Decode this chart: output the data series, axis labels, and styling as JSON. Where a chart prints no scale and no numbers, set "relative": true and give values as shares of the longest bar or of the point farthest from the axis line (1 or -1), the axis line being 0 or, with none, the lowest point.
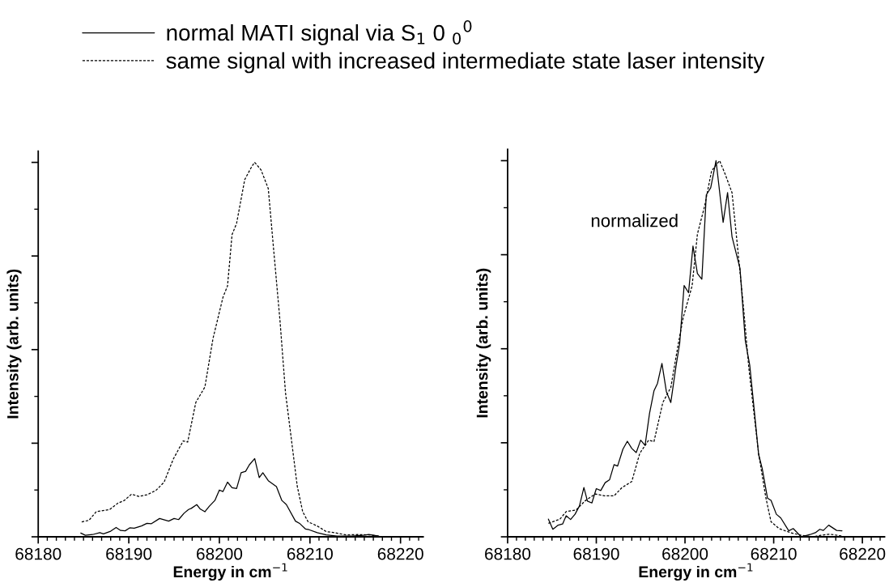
{
  "chart_data": [
    {
      "type": "line",
      "relative": true,
      "xlabel": "Energy in cm$^{−1}$",
      "ylabel": "Intensity (arb. units)",
      "xlim": [
        68180,
        68222.5
      ],
      "xticks": [
        68180,
        68190,
        68200,
        68210,
        68220
      ],
      "legend": "top",
      "tick_labels": "x",
      "series": [
        {
          "name": "normal MATI signal via S$_{1}$ 0 $_{0}$$^{0}$",
          "color": "#000000",
          "line_style": "solid",
          "x": [
            68184.7,
            68185.2,
            68186.0,
            68186.8,
            68187.2,
            68188.0,
            68188.6,
            68189.1,
            68189.6,
            68190.1,
            68190.6,
            68191.4,
            68192.0,
            68192.5,
            68193.4,
            68194.4,
            68195.0,
            68195.5,
            68196.1,
            68196.6,
            68196.9,
            68197.5,
            68197.9,
            68198.4,
            68198.9,
            68199.5,
            68200.0,
            68200.4,
            68200.9,
            68201.4,
            68201.9,
            68202.4,
            68202.9,
            68203.3,
            68203.9,
            68204.4,
            68204.8,
            68205.4,
            68206.3,
            68206.9,
            68207.4,
            68208.4,
            68208.9,
            68209.5,
            68209.9,
            68210.8,
            68211.8,
            68213.0,
            68214.6,
            68215.9,
            68216.5,
            68217.6
          ],
          "values": [
            0.01,
            0.004,
            0.006,
            0.011,
            0.008,
            0.015,
            0.025,
            0.017,
            0.016,
            0.024,
            0.023,
            0.029,
            0.036,
            0.035,
            0.049,
            0.042,
            0.049,
            0.046,
            0.063,
            0.073,
            0.076,
            0.086,
            0.074,
            0.067,
            0.082,
            0.097,
            0.125,
            0.121,
            0.146,
            0.131,
            0.129,
            0.171,
            0.175,
            0.192,
            0.209,
            0.158,
            0.171,
            0.15,
            0.134,
            0.097,
            0.086,
            0.042,
            0.035,
            0.021,
            0.019,
            0.011,
            0.005,
            0.002,
            0.002,
            0.004,
            0.006,
            0.002
          ]
        },
        {
          "name": "same signal with increased intermediate state laser intensity",
          "color": "#000000",
          "line_style": "dashed",
          "x": [
            68184.8,
            68185.6,
            68186.4,
            68187.9,
            68188.8,
            68189.5,
            68190.3,
            68191.1,
            68192.0,
            68193.0,
            68193.9,
            68194.9,
            68196.0,
            68196.5,
            68197.4,
            68198.4,
            68199.3,
            68200.4,
            68200.9,
            68201.4,
            68201.9,
            68202.8,
            68203.6,
            68203.9,
            68204.6,
            68205.4,
            68206.0,
            68206.7,
            68207.3,
            68207.9,
            68208.6,
            68209.2,
            68209.8,
            68210.8,
            68211.8,
            68212.7,
            68214.0,
            68215.3,
            68216.5,
            68217.6
          ],
          "values": [
            0.04,
            0.044,
            0.067,
            0.073,
            0.09,
            0.097,
            0.114,
            0.108,
            0.112,
            0.124,
            0.146,
            0.207,
            0.256,
            0.253,
            0.359,
            0.4,
            0.53,
            0.64,
            0.67,
            0.807,
            0.837,
            0.954,
            0.99,
            1.0,
            0.98,
            0.93,
            0.765,
            0.575,
            0.385,
            0.27,
            0.135,
            0.067,
            0.04,
            0.029,
            0.014,
            0.011,
            0.005,
            0.006,
            0.005,
            0.002
          ]
        }
      ]
    },
    {
      "type": "line",
      "relative": true,
      "xlabel": "Energy in cm$^{−1}$",
      "ylabel": "Intensity (arb. units)",
      "xlim": [
        68180,
        68222.5
      ],
      "xticks": [
        68180,
        68190,
        68200,
        68210,
        68220
      ],
      "tick_labels": "x",
      "annotations": [
        "normalized"
      ],
      "series": [
        {
          "color": "#000000",
          "line_style": "solid",
          "x": [
            68184.6,
            68185.1,
            68185.7,
            68186.2,
            68186.6,
            68187.1,
            68187.6,
            68188.1,
            68188.6,
            68189.0,
            68189.5,
            68190.0,
            68190.5,
            68191.0,
            68191.5,
            68192.0,
            68192.4,
            68193.0,
            68193.5,
            68194.0,
            68194.5,
            68195.0,
            68195.5,
            68196.0,
            68196.5,
            68196.9,
            68197.4,
            68197.9,
            68198.4,
            68199.0,
            68199.4,
            68199.9,
            68200.4,
            68200.9,
            68201.4,
            68201.9,
            68202.4,
            68202.9,
            68203.5,
            68204.3,
            68204.8,
            68205.3,
            68206.2,
            68206.8,
            68207.3,
            68207.8,
            68208.3,
            68208.7,
            68209.3,
            68209.7,
            68210.3,
            68210.8,
            68211.7,
            68212.2,
            68213.1,
            68214.1,
            68214.7,
            68215.2,
            68215.6,
            68216.2,
            68217.1,
            68217.7
          ],
          "values": [
            0.047,
            0.02,
            0.031,
            0.034,
            0.056,
            0.046,
            0.06,
            0.082,
            0.131,
            0.095,
            0.09,
            0.128,
            0.123,
            0.144,
            0.152,
            0.192,
            0.188,
            0.233,
            0.254,
            0.235,
            0.224,
            0.257,
            0.243,
            0.328,
            0.388,
            0.408,
            0.461,
            0.386,
            0.357,
            0.456,
            0.514,
            0.668,
            0.649,
            0.773,
            0.7,
            0.685,
            0.909,
            0.928,
            1.0,
            0.836,
            0.915,
            0.798,
            0.714,
            0.521,
            0.456,
            0.339,
            0.219,
            0.182,
            0.103,
            0.097,
            0.06,
            0.05,
            0.016,
            0.022,
            0.0,
            0.006,
            0.011,
            0.02,
            0.017,
            0.031,
            0.017,
            0.016
          ]
        },
        {
          "color": "#000000",
          "line_style": "dashed",
          "x": [
            68184.6,
            68185.9,
            68186.6,
            68187.7,
            68188.7,
            68189.9,
            68190.9,
            68192.0,
            68192.9,
            68194.0,
            68194.9,
            68195.9,
            68196.5,
            68197.5,
            68198.4,
            68199.2,
            68199.8,
            68200.8,
            68201.4,
            68202.2,
            68203.0,
            68203.9,
            68204.5,
            68205.3,
            68205.9,
            68206.6,
            68207.2,
            68207.8,
            68208.3,
            68209.1,
            68209.7,
            68210.6,
            68211.9,
            68213.1,
            68214.4,
            68215.3,
            68216.3,
            68217.7
          ],
          "values": [
            0.036,
            0.047,
            0.067,
            0.071,
            0.095,
            0.114,
            0.109,
            0.109,
            0.131,
            0.147,
            0.222,
            0.257,
            0.253,
            0.357,
            0.397,
            0.507,
            0.583,
            0.667,
            0.805,
            0.878,
            0.973,
            1.0,
            0.966,
            0.915,
            0.776,
            0.609,
            0.448,
            0.324,
            0.222,
            0.106,
            0.04,
            0.022,
            0.011,
            0.004,
            0.0,
            0.004,
            0.007,
            0.002
          ]
        }
      ]
    }
  ]
}
